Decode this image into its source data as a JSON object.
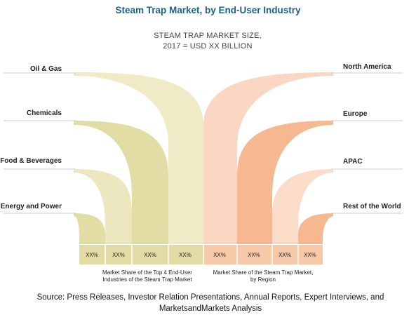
{
  "title": "Steam Trap Market, by End-User Industry",
  "subtitle_line1": "STEAM TRAP MARKET SIZE,",
  "subtitle_line2": "2017 = USD XX BILLION",
  "left_labels": [
    "Oil & Gas",
    "Chemicals",
    "Food & Beverages",
    "Energy and Power"
  ],
  "right_labels": [
    "North America",
    "Europe",
    "APAC",
    "Rest of the World"
  ],
  "values": [
    "XX%",
    "XX%",
    "XX%",
    "XX%",
    "XX%",
    "XX%",
    "XX%",
    "XX%"
  ],
  "caption_left": [
    "Market Share of the Top 4 End-User",
    "Industries of the Steam Trap Market"
  ],
  "caption_right": [
    "Market Share of the Steam Trap Market,",
    "by Region"
  ],
  "source_line1": "Source: Press Releases, Investor Relation Presentations, Annual Reports, Expert Interviews, and",
  "source_line2": "MarketsandMarkets Analysis",
  "colors": {
    "title": "#1f5f8b",
    "left_shapes": [
      "#f0ebc6",
      "#e2dca5",
      "#ece7bf",
      "#e2dca5"
    ],
    "right_shapes": [
      "#f9d7c3",
      "#f5b890",
      "#fbdcc8",
      "#f5b890"
    ],
    "left_bar": "#e3dba4",
    "right_bar": "#f8c9a8"
  }
}
